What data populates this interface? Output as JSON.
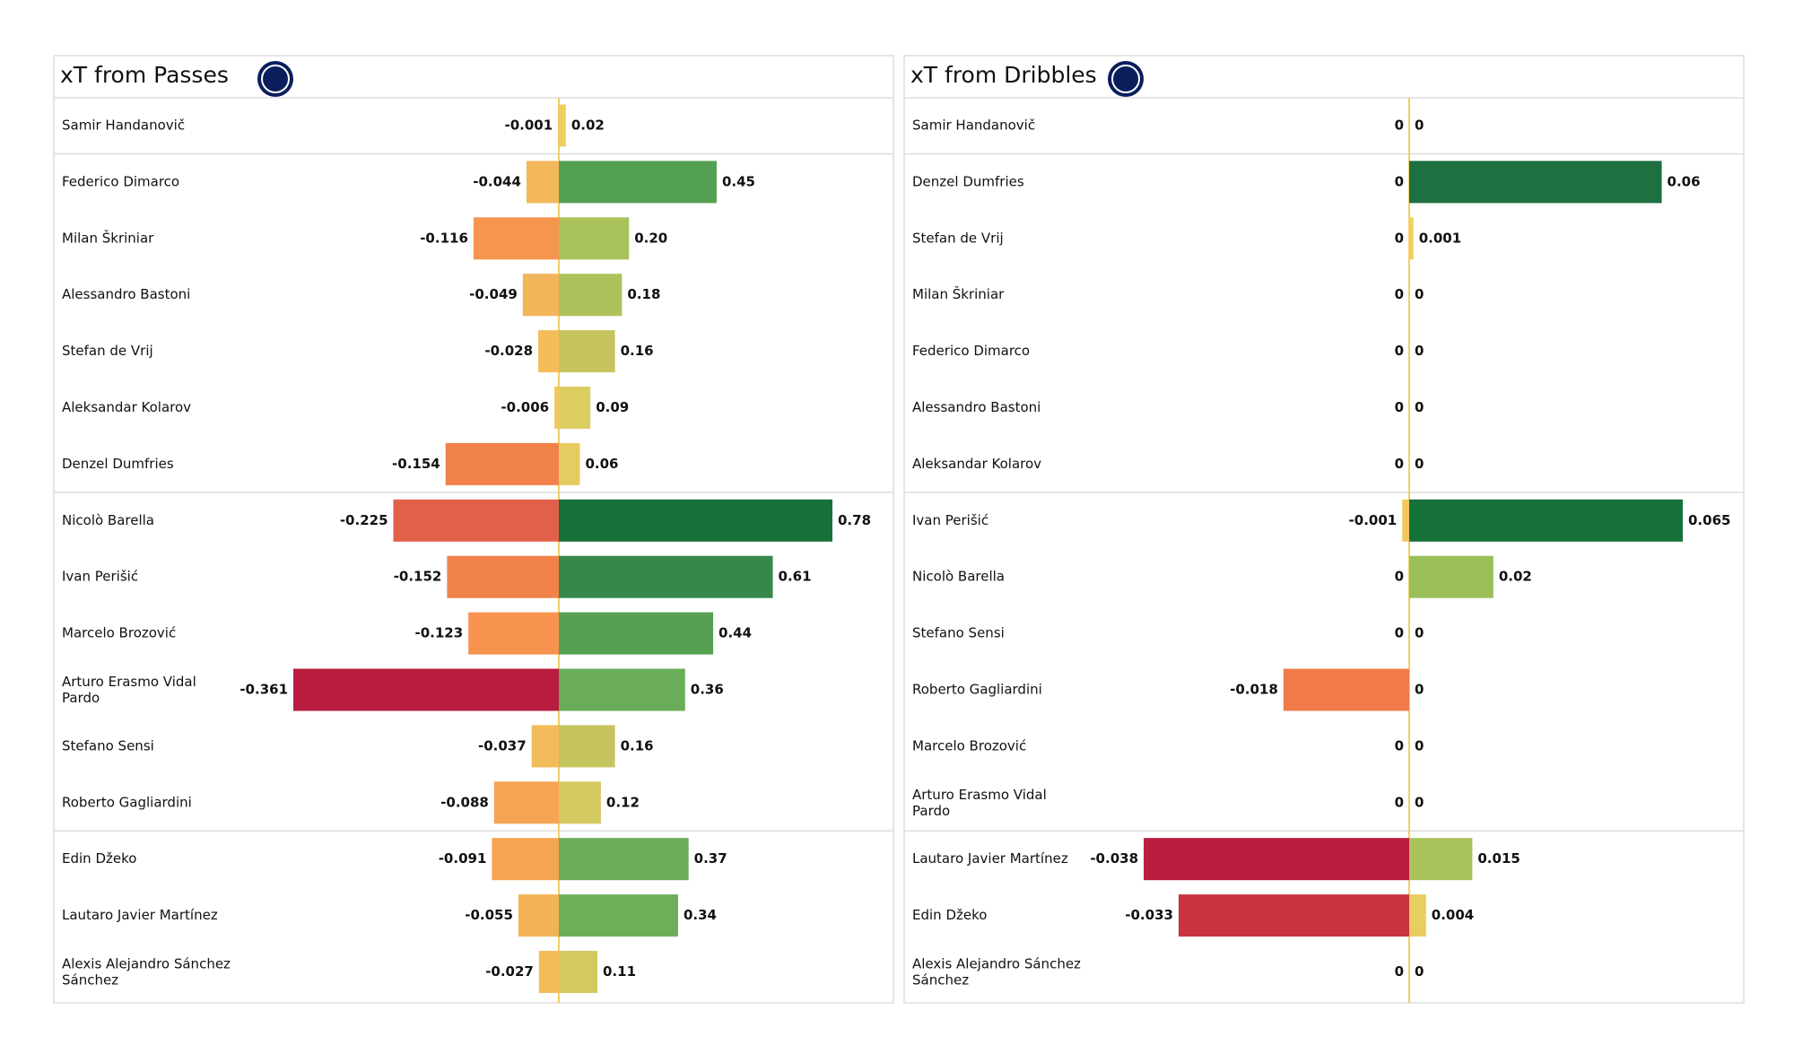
{
  "chart_data": [
    {
      "type": "diverging-bar",
      "title": "xT from Passes",
      "categories": [
        "Samir Handanovič",
        "Federico Dimarco",
        "Milan Škriniar",
        "Alessandro Bastoni",
        "Stefan de Vrij",
        "Aleksandar Kolarov",
        "Denzel Dumfries",
        "Nicolò Barella",
        "Ivan Perišić",
        "Marcelo Brozović",
        "Arturo Erasmo Vidal Pardo",
        "Stefano Sensi",
        "Roberto Gagliardini",
        "Edin Džeko",
        "Lautaro Javier Martínez",
        "Alexis Alejandro Sánchez Sánchez"
      ],
      "xlim": [
        -0.361,
        0.78
      ],
      "series": [
        {
          "values": [
            -0.001,
            -0.044,
            -0.116,
            -0.049,
            -0.028,
            -0.006,
            -0.154,
            -0.225,
            -0.152,
            -0.123,
            -0.361,
            -0.037,
            -0.088,
            -0.091,
            -0.055,
            -0.027
          ],
          "colors": [
            "#f1c85c",
            "#f2b85a",
            "#f6964e",
            "#f2b55a",
            "#f3bd5a",
            "#f1c85c",
            "#f0824a",
            "#e2604a",
            "#f0824a",
            "#f6934e",
            "#b81c3e",
            "#f3bb5a",
            "#f5a452",
            "#f5a452",
            "#f4b256",
            "#f3bd5a"
          ]
        },
        {
          "values": [
            0.02,
            0.45,
            0.2,
            0.18,
            0.16,
            0.09,
            0.06,
            0.78,
            0.61,
            0.44,
            0.36,
            0.16,
            0.12,
            0.37,
            0.34,
            0.11
          ],
          "value_labels": [
            "0.02",
            "0.45",
            "0.20",
            "0.18",
            "0.16",
            "0.09",
            "0.06",
            "0.78",
            "0.61",
            "0.44",
            "0.36",
            "0.16",
            "0.12",
            "0.37",
            "0.34",
            "0.11"
          ],
          "colors": [
            "#efcd5e",
            "#54a052",
            "#a9c25a",
            "#adc25a",
            "#c6c45e",
            "#dccd62",
            "#e6cc60",
            "#17703a",
            "#36884a",
            "#55a052",
            "#6aad58",
            "#c6c45e",
            "#d4c960",
            "#6aad58",
            "#6fae58",
            "#d4c960"
          ]
        }
      ]
    },
    {
      "type": "diverging-bar",
      "title": "xT from Dribbles",
      "categories": [
        "Samir Handanovič",
        "Denzel Dumfries",
        "Stefan de Vrij",
        "Milan Škriniar",
        "Federico Dimarco",
        "Alessandro Bastoni",
        "Aleksandar Kolarov",
        "Ivan Perišić",
        "Nicolò Barella",
        "Stefano Sensi",
        "Roberto Gagliardini",
        "Marcelo Brozović",
        "Arturo Erasmo Vidal Pardo",
        "Lautaro Javier Martínez",
        "Edin Džeko",
        "Alexis Alejandro Sánchez Sánchez"
      ],
      "xlim": [
        -0.038,
        0.065
      ],
      "series": [
        {
          "values": [
            0,
            0,
            0,
            0,
            0,
            0,
            0,
            -0.001,
            0,
            0,
            -0.018,
            0,
            0,
            -0.038,
            -0.033,
            0
          ],
          "colors": [
            "#f1d060",
            "#f1d060",
            "#f1d060",
            "#f1d060",
            "#f1d060",
            "#f1d060",
            "#f1d060",
            "#f1c85c",
            "#f1d060",
            "#f1d060",
            "#f07a48",
            "#f1d060",
            "#f1d060",
            "#b81c3e",
            "#c8333f",
            "#f1d060"
          ]
        },
        {
          "values": [
            0,
            0.06,
            0.001,
            0,
            0,
            0,
            0,
            0.065,
            0.02,
            0,
            0,
            0,
            0,
            0.015,
            0.004,
            0
          ],
          "colors": [
            "#f1d060",
            "#1e7040",
            "#f1cf5c",
            "#f1d060",
            "#f1d060",
            "#f1d060",
            "#f1d060",
            "#15703a",
            "#9abf58",
            "#f1d060",
            "#f1d060",
            "#f1d060",
            "#f1d060",
            "#a9c25a",
            "#e9cd60",
            "#f1d060"
          ]
        }
      ]
    }
  ]
}
